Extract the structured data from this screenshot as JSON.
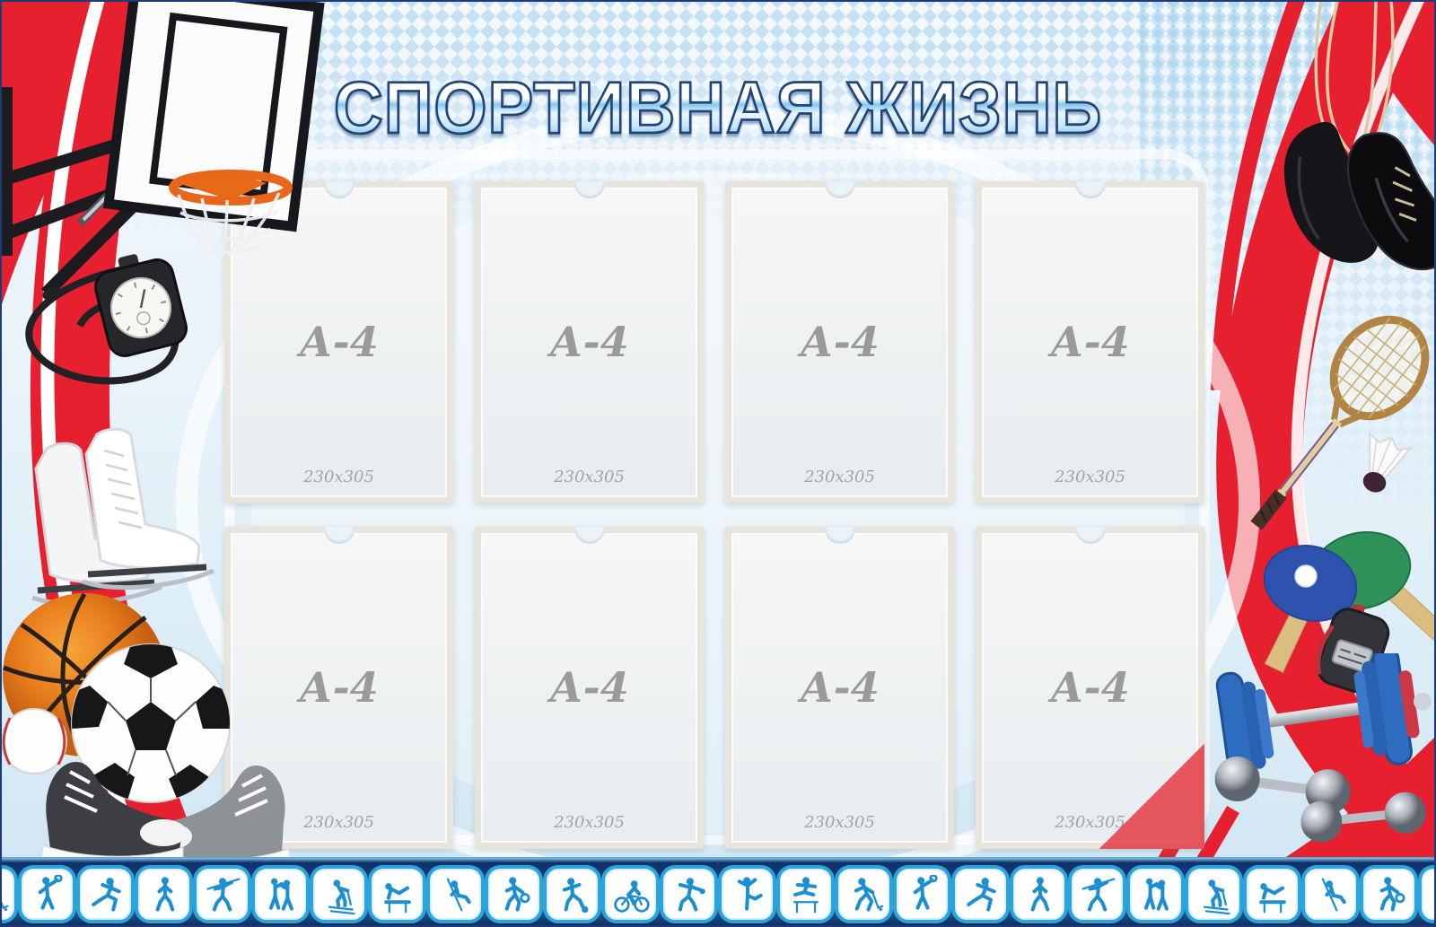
{
  "board": {
    "title": "СПОРТИВНАЯ ЖИЗНЬ"
  },
  "pocket": {
    "label": "А-4",
    "size_label": "230x305",
    "count": 8
  },
  "footer": {
    "icons": [
      "hockey",
      "badminton",
      "running",
      "race-walking",
      "javelin",
      "pair-figure-skating",
      "skiing",
      "gymnastics",
      "rowing",
      "basketball",
      "football",
      "cycling",
      "discus-throw",
      "figure-skating",
      "hurdles",
      "hockey",
      "badminton",
      "running",
      "race-walking",
      "javelin",
      "pair-figure-skating",
      "skiing",
      "gymnastics",
      "rowing",
      "basketball",
      "football"
    ]
  },
  "colors": {
    "accent_red": "#e6202e",
    "navy": "#143c78",
    "icon_blue": "#1b8fd2",
    "tile_ring": "#2ba4de",
    "background_light": "#e9f3fa"
  },
  "decorations": [
    "basketball-hoop",
    "stopwatch-on-cord",
    "ice-skates",
    "basketball-ball",
    "soccer-ball",
    "baseball-ball",
    "sneakers",
    "boxing-gloves",
    "badminton-racket",
    "shuttlecock",
    "table-tennis-paddles",
    "digital-stopwatch",
    "dumbbells"
  ]
}
